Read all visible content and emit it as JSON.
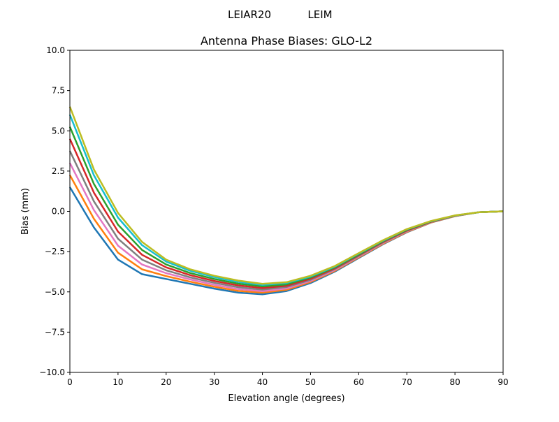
{
  "chart_data": {
    "type": "line",
    "suptitle_left": "LEIAR20",
    "suptitle_right": "LEIM",
    "title": "Antenna Phase Biases: GLO-L2",
    "xlabel": "Elevation angle (degrees)",
    "ylabel": "Bias (mm)",
    "xlim": [
      0,
      90
    ],
    "ylim": [
      -10,
      10
    ],
    "grid": false,
    "xticks": [
      "0",
      "10",
      "20",
      "30",
      "40",
      "50",
      "60",
      "70",
      "80",
      "90"
    ],
    "yticks": [
      "10.0",
      "7.5",
      "5.0",
      "2.5",
      "0.0",
      "−2.5",
      "−5.0",
      "−7.5",
      "−10.0"
    ],
    "x": [
      0,
      5,
      10,
      15,
      20,
      25,
      30,
      35,
      40,
      45,
      50,
      55,
      60,
      65,
      70,
      75,
      80,
      85,
      90
    ],
    "series": [
      {
        "color": "#1f77b4",
        "values": [
          1.5,
          -1.0,
          -3.0,
          -3.9,
          -4.2,
          -4.5,
          -4.8,
          -5.05,
          -5.15,
          -4.95,
          -4.45,
          -3.75,
          -2.9,
          -2.05,
          -1.3,
          -0.7,
          -0.3,
          -0.05,
          0
        ]
      },
      {
        "color": "#ff7f0e",
        "values": [
          2.25,
          -0.46,
          -2.57,
          -3.6,
          -4.02,
          -4.37,
          -4.68,
          -4.94,
          -5.05,
          -4.87,
          -4.38,
          -3.7,
          -2.86,
          -2.02,
          -1.28,
          -0.69,
          -0.3,
          -0.05,
          0
        ]
      },
      {
        "color": "#e377c2",
        "values": [
          3.0,
          0.08,
          -2.13,
          -3.3,
          -3.84,
          -4.23,
          -4.56,
          -4.83,
          -4.96,
          -4.79,
          -4.32,
          -3.65,
          -2.81,
          -1.98,
          -1.24,
          -0.67,
          -0.28,
          -0.05,
          0
        ]
      },
      {
        "color": "#7f7f7f",
        "values": [
          3.75,
          0.62,
          -1.7,
          -3.0,
          -3.66,
          -4.1,
          -4.44,
          -4.71,
          -4.86,
          -4.7,
          -4.25,
          -3.59,
          -2.77,
          -1.94,
          -1.21,
          -0.66,
          -0.28,
          -0.05,
          0
        ]
      },
      {
        "color": "#d62728",
        "values": [
          4.5,
          1.16,
          -1.26,
          -2.7,
          -3.48,
          -3.96,
          -4.32,
          -4.6,
          -4.76,
          -4.62,
          -4.18,
          -3.54,
          -2.72,
          -1.9,
          -1.18,
          -0.64,
          -0.27,
          -0.05,
          0
        ]
      },
      {
        "color": "#2ca02c",
        "values": [
          5.25,
          1.7,
          -0.83,
          -2.4,
          -3.3,
          -3.83,
          -4.2,
          -4.49,
          -4.66,
          -4.54,
          -4.11,
          -3.49,
          -2.68,
          -1.86,
          -1.15,
          -0.63,
          -0.26,
          -0.05,
          0
        ]
      },
      {
        "color": "#17becf",
        "values": [
          6.0,
          2.24,
          -0.39,
          -2.1,
          -3.12,
          -3.69,
          -4.08,
          -4.38,
          -4.57,
          -4.45,
          -4.05,
          -3.44,
          -2.63,
          -1.83,
          -1.12,
          -0.61,
          -0.26,
          -0.05,
          0
        ]
      },
      {
        "color": "#bcbd22",
        "values": [
          6.5,
          2.6,
          -0.1,
          -1.9,
          -3.0,
          -3.6,
          -4.0,
          -4.3,
          -4.5,
          -4.4,
          -4.0,
          -3.4,
          -2.6,
          -1.8,
          -1.1,
          -0.6,
          -0.25,
          -0.05,
          0
        ]
      }
    ]
  }
}
